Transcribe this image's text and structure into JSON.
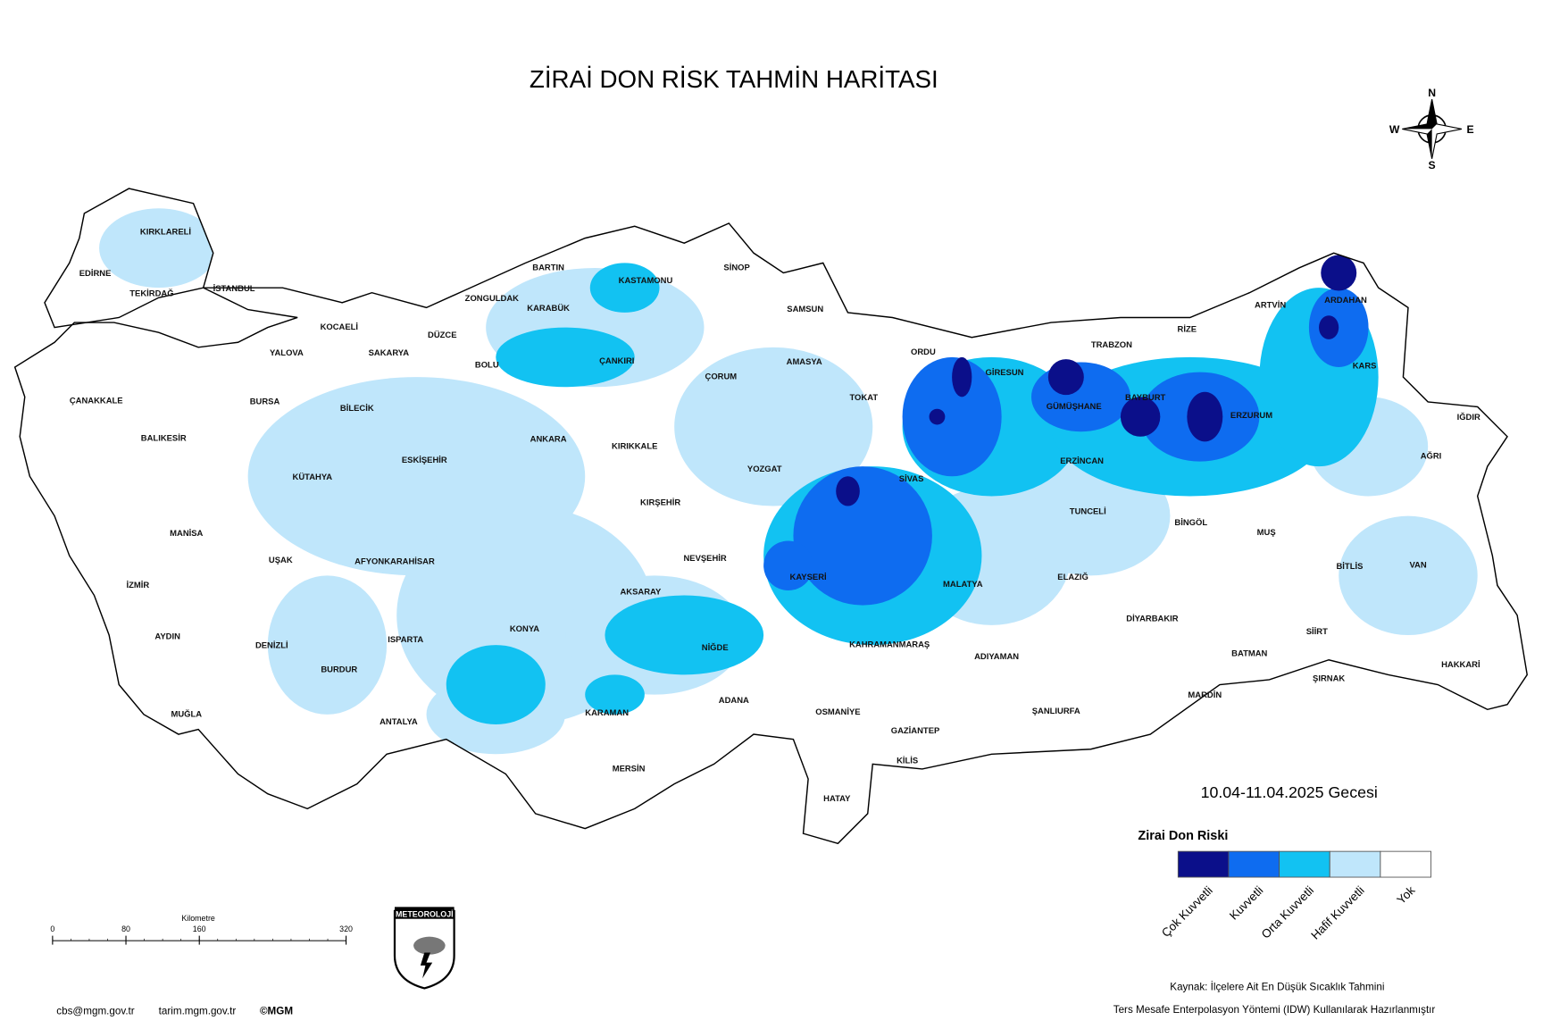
{
  "title": "ZİRAİ DON RİSK TAHMİN HARİTASI",
  "compass": {
    "n": "N",
    "s": "S",
    "e": "E",
    "w": "W"
  },
  "date": "10.04-11.04.2025 Gecesi",
  "legend": {
    "title": "Zirai Don Riski",
    "items": [
      {
        "label": "Çok Kuvvetli",
        "color": "#0b0f8a"
      },
      {
        "label": "Kuvvetli",
        "color": "#0e6cf0"
      },
      {
        "label": "Orta Kuvvetli",
        "color": "#12c2f2"
      },
      {
        "label": "Hafif Kuvvetli",
        "color": "#bfe6fb"
      },
      {
        "label": "Yok",
        "color": "#ffffff"
      }
    ]
  },
  "scale_bar": {
    "unit": "Kilometre",
    "ticks": [
      0,
      80,
      160,
      320
    ]
  },
  "logo": "METEOROLOJİ",
  "footer": {
    "email": "cbs@mgm.gov.tr",
    "site": "tarim.mgm.gov.tr",
    "copyright": "©MGM",
    "source": "Kaynak: İlçelere Ait En Düşük Sıcaklık Tahmini",
    "method": "Ters Mesafe Enterpolasyon Yöntemi (IDW) Kullanılarak Hazırlanmıştır"
  },
  "provinces": [
    "KIRKLARELİ",
    "EDİRNE",
    "TEKİRDAĞ",
    "İSTANBUL",
    "KOCAELİ",
    "YALOVA",
    "SAKARYA",
    "DÜZCE",
    "ZONGULDAK",
    "BARTIN",
    "KARABÜK",
    "KASTAMONU",
    "SİNOP",
    "SAMSUN",
    "BOLU",
    "ÇANKIRI",
    "ÇORUM",
    "AMASYA",
    "ORDU",
    "GİRESUN",
    "TRABZON",
    "RİZE",
    "ARTVİN",
    "ARDAHAN",
    "KARS",
    "IĞDIR",
    "AĞRI",
    "ERZURUM",
    "BAYBURT",
    "GÜMÜŞHANE",
    "ERZİNCAN",
    "TOKAT",
    "SİVAS",
    "YOZGAT",
    "KIRIKKALE",
    "ANKARA",
    "ÇANAKKALE",
    "BALIKESİR",
    "BURSA",
    "BİLECİK",
    "ESKİŞEHİR",
    "KÜTAHYA",
    "MANİSA",
    "UŞAK",
    "AFYONKARAHİSAR",
    "İZMİR",
    "AYDIN",
    "DENİZLİ",
    "MUĞLA",
    "BURDUR",
    "ISPARTA",
    "ANTALYA",
    "KONYA",
    "KARAMAN",
    "MERSİN",
    "AKSARAY",
    "NİĞDE",
    "NEVŞEHİR",
    "KIRŞEHİR",
    "KAYSERİ",
    "ADANA",
    "OSMANİYE",
    "HATAY",
    "GAZİANTEP",
    "KİLİS",
    "KAHRAMANMARAŞ",
    "ADIYAMAN",
    "MALATYA",
    "ELAZIĞ",
    "TUNCELİ",
    "BİNGÖL",
    "MUŞ",
    "BİTLİS",
    "VAN",
    "SİİRT",
    "BATMAN",
    "ŞIRNAK",
    "HAKKARİ",
    "MARDİN",
    "ŞANLIURFA",
    "DİYARBAKIR"
  ]
}
